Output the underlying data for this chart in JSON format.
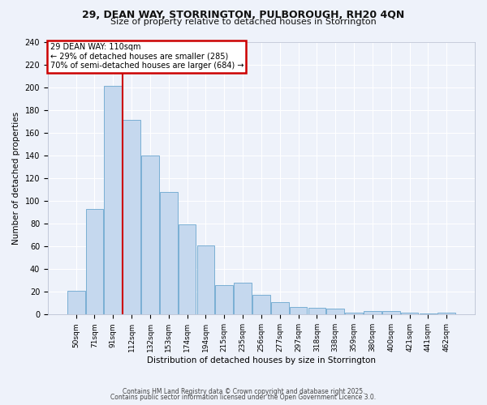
{
  "title1": "29, DEAN WAY, STORRINGTON, PULBOROUGH, RH20 4QN",
  "title2": "Size of property relative to detached houses in Storrington",
  "xlabel": "Distribution of detached houses by size in Storrington",
  "ylabel": "Number of detached properties",
  "categories": [
    "50sqm",
    "71sqm",
    "91sqm",
    "112sqm",
    "132sqm",
    "153sqm",
    "174sqm",
    "194sqm",
    "215sqm",
    "235sqm",
    "256sqm",
    "277sqm",
    "297sqm",
    "318sqm",
    "338sqm",
    "359sqm",
    "380sqm",
    "400sqm",
    "421sqm",
    "441sqm",
    "462sqm"
  ],
  "values": [
    21,
    93,
    201,
    171,
    140,
    108,
    79,
    61,
    26,
    28,
    17,
    11,
    7,
    6,
    5,
    2,
    3,
    3,
    2,
    1,
    2
  ],
  "bar_color": "#c5d8ee",
  "bar_edge_color": "#7aafd4",
  "vline_index": 3,
  "vline_color": "#cc0000",
  "annotation_title": "29 DEAN WAY: 110sqm",
  "annotation_line1": "← 29% of detached houses are smaller (285)",
  "annotation_line2": "70% of semi-detached houses are larger (684) →",
  "annotation_box_color": "#cc0000",
  "ylim": [
    0,
    240
  ],
  "yticks": [
    0,
    20,
    40,
    60,
    80,
    100,
    120,
    140,
    160,
    180,
    200,
    220,
    240
  ],
  "footer1": "Contains HM Land Registry data © Crown copyright and database right 2025.",
  "footer2": "Contains public sector information licensed under the Open Government Licence 3.0.",
  "bg_color": "#eef2fa",
  "grid_color": "#ffffff",
  "title1_fontsize": 9,
  "title2_fontsize": 8
}
